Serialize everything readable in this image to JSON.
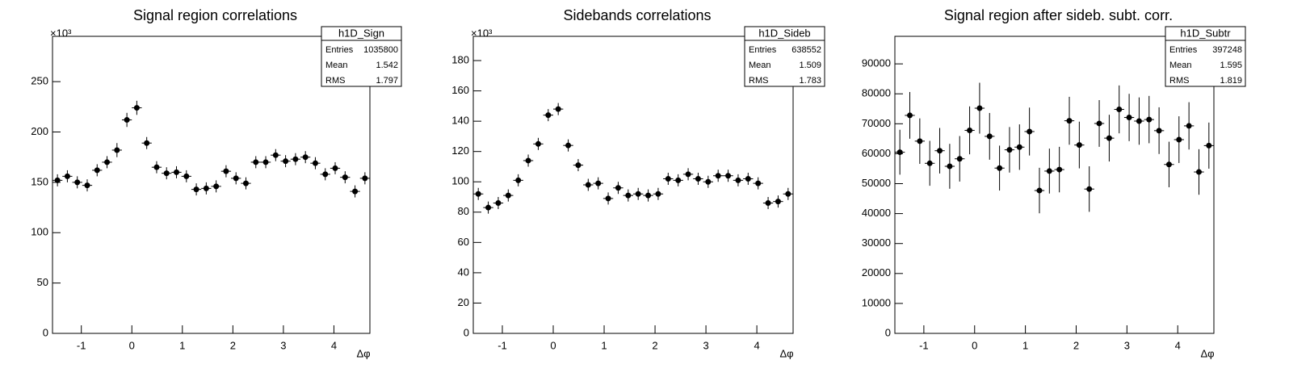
{
  "chart_data": [
    {
      "type": "histogram",
      "title": "Signal region correlations",
      "xlabel": "Δφ",
      "ylabel_exponent": "×10³",
      "bins": [
        -1.5708,
        -1.3744,
        -1.1781,
        -0.9817,
        -0.7854,
        -0.589,
        -0.3927,
        -0.1963,
        0,
        0.1963,
        0.3927,
        0.589,
        0.7854,
        0.9817,
        1.1781,
        1.3744,
        1.5708,
        1.7671,
        1.9635,
        2.1598,
        2.3562,
        2.5525,
        2.7489,
        2.9452,
        3.1416,
        3.3379,
        3.5343,
        3.7306,
        3.927,
        4.1233,
        4.3197,
        4.516,
        4.7124
      ],
      "values": [
        152,
        156,
        150,
        147,
        162,
        170,
        182,
        212,
        224,
        189,
        165,
        159,
        160,
        156,
        143,
        144,
        146,
        161,
        154,
        149,
        170,
        170,
        177,
        171,
        173,
        175,
        169,
        158,
        164,
        155,
        141,
        154
      ],
      "errors": [
        6,
        6,
        6,
        6,
        6,
        6,
        7,
        7,
        7,
        6,
        6,
        6,
        6,
        6,
        6,
        6,
        6,
        6,
        6,
        6,
        6,
        6,
        6,
        6,
        6,
        6,
        6,
        6,
        6,
        6,
        6,
        6
      ],
      "xlim": [
        -1.5708,
        4.7124
      ],
      "xticks": [
        -1,
        0,
        1,
        2,
        3,
        4
      ],
      "ylim": [
        0,
        295
      ],
      "yticks": [
        0,
        50,
        100,
        150,
        200,
        250
      ],
      "color": "#000000",
      "stats": {
        "name": "h1D_Sign",
        "rows": [
          {
            "label": "Entries",
            "value": 1035800
          },
          {
            "label": "Mean",
            "value": 1.542
          },
          {
            "label": "RMS",
            "value": 1.797
          }
        ]
      }
    },
    {
      "type": "histogram",
      "title": "Sidebands correlations",
      "xlabel": "Δφ",
      "ylabel_exponent": "×10³",
      "bins": [
        -1.5708,
        -1.3744,
        -1.1781,
        -0.9817,
        -0.7854,
        -0.589,
        -0.3927,
        -0.1963,
        0,
        0.1963,
        0.3927,
        0.589,
        0.7854,
        0.9817,
        1.1781,
        1.3744,
        1.5708,
        1.7671,
        1.9635,
        2.1598,
        2.3562,
        2.5525,
        2.7489,
        2.9452,
        3.1416,
        3.3379,
        3.5343,
        3.7306,
        3.927,
        4.1233,
        4.3197,
        4.516,
        4.7124
      ],
      "values": [
        92,
        83,
        86,
        91,
        101,
        114,
        125,
        144,
        148,
        124,
        111,
        98,
        99,
        89,
        96,
        91,
        92,
        91,
        92,
        102,
        101,
        105,
        102,
        100,
        104,
        104,
        101,
        102,
        99,
        86,
        87,
        92
      ],
      "errors": [
        4,
        4,
        4,
        4,
        4,
        4,
        4,
        4,
        4,
        4,
        4,
        4,
        4,
        4,
        4,
        4,
        4,
        4,
        4,
        4,
        4,
        4,
        4,
        4,
        4,
        4,
        4,
        4,
        4,
        4,
        4,
        4
      ],
      "xlim": [
        -1.5708,
        4.7124
      ],
      "xticks": [
        -1,
        0,
        1,
        2,
        3,
        4
      ],
      "ylim": [
        0,
        196
      ],
      "yticks": [
        0,
        20,
        40,
        60,
        80,
        100,
        120,
        140,
        160,
        180
      ],
      "color": "#000000",
      "stats": {
        "name": "h1D_Sideb",
        "rows": [
          {
            "label": "Entries",
            "value": 638552
          },
          {
            "label": "Mean",
            "value": 1.509
          },
          {
            "label": "RMS",
            "value": 1.783
          }
        ]
      }
    },
    {
      "type": "histogram",
      "title": "Signal region after sideb. subt. corr.",
      "xlabel": "Δφ",
      "bins": [
        -1.5708,
        -1.3744,
        -1.1781,
        -0.9817,
        -0.7854,
        -0.589,
        -0.3927,
        -0.1963,
        0,
        0.1963,
        0.3927,
        0.589,
        0.7854,
        0.9817,
        1.1781,
        1.3744,
        1.5708,
        1.7671,
        1.9635,
        2.1598,
        2.3562,
        2.5525,
        2.7489,
        2.9452,
        3.1416,
        3.3379,
        3.5343,
        3.7306,
        3.927,
        4.1233,
        4.3197,
        4.516,
        4.7124
      ],
      "values": [
        60500,
        72800,
        64200,
        56800,
        61000,
        55800,
        58300,
        67800,
        75200,
        65800,
        55200,
        61300,
        62200,
        67400,
        47700,
        54200,
        54700,
        71000,
        62900,
        48200,
        70100,
        65200,
        74800,
        72100,
        70900,
        71400,
        67700,
        56400,
        64700,
        69300,
        53900,
        62700
      ],
      "errors": [
        7500,
        7800,
        7600,
        7500,
        7600,
        7500,
        7600,
        8000,
        8500,
        7800,
        7500,
        7600,
        7600,
        8000,
        7600,
        7500,
        7600,
        8000,
        7800,
        7600,
        7800,
        7800,
        8000,
        7900,
        7900,
        7900,
        7800,
        7600,
        7800,
        7900,
        7600,
        7700
      ],
      "xlim": [
        -1.5708,
        4.7124
      ],
      "xticks": [
        -1,
        0,
        1,
        2,
        3,
        4
      ],
      "ylim": [
        0,
        99200
      ],
      "yticks": [
        0,
        10000,
        20000,
        30000,
        40000,
        50000,
        60000,
        70000,
        80000,
        90000
      ],
      "color": "#000000",
      "stats": {
        "name": "h1D_Subtr",
        "rows": [
          {
            "label": "Entries",
            "value": 397248
          },
          {
            "label": "Mean",
            "value": 1.595
          },
          {
            "label": "RMS",
            "value": 1.819
          }
        ]
      }
    }
  ]
}
